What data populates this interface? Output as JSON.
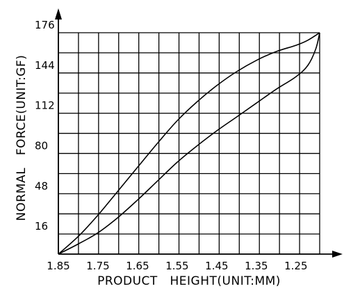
{
  "chart_data": {
    "type": "line",
    "title": "",
    "xlabel": "PRODUCT   HEIGHT(UNIT:MM)",
    "ylabel": "NORMAL   FORCE(UNIT:GF)",
    "x_reversed": true,
    "xlim": [
      1.85,
      1.19
    ],
    "ylim": [
      0,
      176
    ],
    "x_ticks": [
      1.85,
      1.75,
      1.65,
      1.55,
      1.45,
      1.35,
      1.25
    ],
    "x_tick_labels": [
      "1.85",
      "1.75",
      "1.65",
      "1.55",
      "1.45",
      "1.35",
      "1.25"
    ],
    "y_ticks": [
      16,
      48,
      80,
      112,
      144,
      176
    ],
    "y_tick_labels": [
      "16",
      "48",
      "80",
      "112",
      "144",
      "176"
    ],
    "grid": true,
    "series": [
      {
        "x": [
          1.85,
          1.8,
          1.75,
          1.7,
          1.65,
          1.6,
          1.55,
          1.5,
          1.45,
          1.4,
          1.35,
          1.3,
          1.25,
          1.22,
          1.19
        ],
        "y": [
          0,
          14,
          31,
          50,
          69,
          88,
          106,
          121,
          134,
          145,
          154,
          161,
          166,
          170,
          176
        ]
      },
      {
        "x": [
          1.85,
          1.8,
          1.75,
          1.7,
          1.65,
          1.6,
          1.55,
          1.5,
          1.45,
          1.4,
          1.35,
          1.3,
          1.25,
          1.22,
          1.2,
          1.19
        ],
        "y": [
          0,
          8,
          17,
          29,
          43,
          58,
          73,
          86,
          98,
          109,
          120,
          131,
          141,
          150,
          163,
          176
        ]
      }
    ]
  }
}
